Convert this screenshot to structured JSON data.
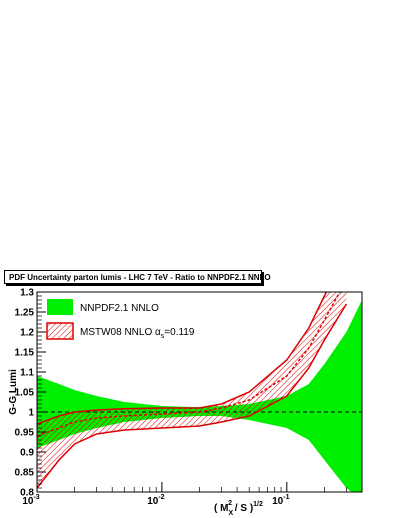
{
  "chart_data": {
    "type": "area",
    "title": "PDF Uncertainty parton lumis - LHC 7 TeV - Ratio to NNPDF2.1 NNLO",
    "xlabel": "( M_X / S )^1/2",
    "ylabel": "G-G Lumi",
    "xscale": "log",
    "xlim": [
      0.001,
      0.4
    ],
    "ylim": [
      0.8,
      1.3
    ],
    "x_tick_labels": [
      "10^-3",
      "10^-2",
      "10^-1"
    ],
    "y_ticks": [
      0.8,
      0.85,
      0.9,
      0.95,
      1,
      1.05,
      1.1,
      1.15,
      1.2,
      1.25,
      1.3
    ],
    "legend_position": "top-left",
    "reference_line": 1.0,
    "series": [
      {
        "name": "NNPDF2.1 NNLO",
        "color": "#00ee00",
        "style": "solid band",
        "x": [
          0.001,
          0.0015,
          0.002,
          0.003,
          0.005,
          0.01,
          0.02,
          0.03,
          0.05,
          0.1,
          0.15,
          0.2,
          0.3,
          0.4
        ],
        "lower": [
          0.91,
          0.93,
          0.945,
          0.96,
          0.975,
          0.985,
          0.99,
          0.99,
          0.98,
          0.96,
          0.93,
          0.88,
          0.81,
          0.78
        ],
        "upper": [
          1.09,
          1.07,
          1.055,
          1.04,
          1.025,
          1.015,
          1.012,
          1.015,
          1.02,
          1.04,
          1.07,
          1.12,
          1.2,
          1.28
        ]
      },
      {
        "name": "MSTW08 NNLO α_s=0.119",
        "color": "#dd0000",
        "style": "hatched band",
        "x": [
          0.001,
          0.0015,
          0.002,
          0.003,
          0.005,
          0.01,
          0.02,
          0.03,
          0.05,
          0.1,
          0.15,
          0.2,
          0.3
        ],
        "central": [
          0.94,
          0.96,
          0.975,
          0.985,
          0.99,
          0.995,
          1.0,
          1.01,
          1.03,
          1.09,
          1.16,
          1.23,
          1.33
        ],
        "lower": [
          0.81,
          0.88,
          0.92,
          0.945,
          0.955,
          0.96,
          0.965,
          0.975,
          0.99,
          1.04,
          1.11,
          1.18,
          1.27
        ],
        "upper": [
          0.97,
          0.99,
          1.0,
          1.005,
          1.008,
          1.01,
          1.01,
          1.02,
          1.05,
          1.13,
          1.21,
          1.29,
          1.4
        ]
      }
    ]
  },
  "legend": {
    "item1": "NNPDF2.1 NNLO",
    "item2_prefix": "MSTW08 NNLO α",
    "item2_sub": "s",
    "item2_suffix": "=0.119"
  },
  "axis": {
    "ylabel": "G-G Lumi",
    "xlabel_open": "( M",
    "xlabel_sub": "X",
    "xlabel_sup": "2",
    "xlabel_close": " / S )",
    "xlabel_power": "1/2",
    "x_tick_base": "10",
    "x_tick_exps": [
      "-3",
      "-2",
      "-1"
    ]
  }
}
